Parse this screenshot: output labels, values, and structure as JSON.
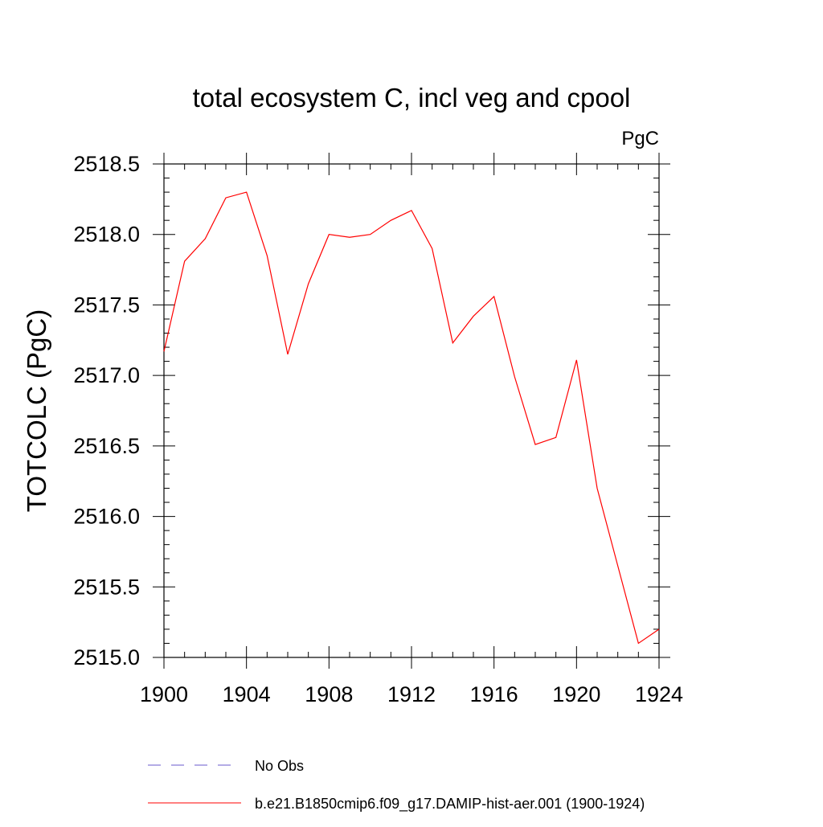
{
  "chart_data": {
    "type": "line",
    "title": "total ecosystem C, incl veg and cpool",
    "units_label": "PgC",
    "xlabel": "",
    "ylabel": "TOTCOLC  (PgC)",
    "xlim": [
      1900,
      1924
    ],
    "ylim": [
      2515.0,
      2518.5
    ],
    "x_ticks": [
      1900,
      1904,
      1908,
      1912,
      1916,
      1920,
      1924
    ],
    "x_tick_labels": [
      "1900",
      "1904",
      "1908",
      "1912",
      "1916",
      "1920",
      "1924"
    ],
    "y_ticks": [
      2515.0,
      2515.5,
      2516.0,
      2516.5,
      2517.0,
      2517.5,
      2518.0,
      2518.5
    ],
    "y_tick_labels": [
      "2515.0",
      "2515.5",
      "2516.0",
      "2516.5",
      "2517.0",
      "2517.5",
      "2518.0",
      "2518.5"
    ],
    "grid": false,
    "legend_position": "bottom",
    "x": [
      1900,
      1901,
      1902,
      1903,
      1904,
      1905,
      1906,
      1907,
      1908,
      1909,
      1910,
      1911,
      1912,
      1913,
      1914,
      1915,
      1916,
      1917,
      1918,
      1919,
      1920,
      1921,
      1922,
      1923,
      1924
    ],
    "series": [
      {
        "name": "b.e21.B1850cmip6.f09_g17.DAMIP-hist-aer.001 (1900-1924)",
        "color": "#ff0000",
        "dash": "solid",
        "values": [
          2517.17,
          2517.81,
          2517.97,
          2518.26,
          2518.3,
          2517.85,
          2517.15,
          2517.65,
          2518.0,
          2517.98,
          2518.0,
          2518.1,
          2518.17,
          2517.9,
          2517.23,
          2517.42,
          2517.56,
          2516.99,
          2516.51,
          2516.56,
          2517.11,
          2516.2,
          2515.65,
          2515.1,
          2515.2
        ]
      }
    ],
    "legend": [
      {
        "label": "No Obs",
        "color": "#6a5acd",
        "dash": "dashed"
      },
      {
        "label": "b.e21.B1850cmip6.f09_g17.DAMIP-hist-aer.001 (1900-1924)",
        "color": "#ff0000",
        "dash": "solid"
      }
    ]
  }
}
